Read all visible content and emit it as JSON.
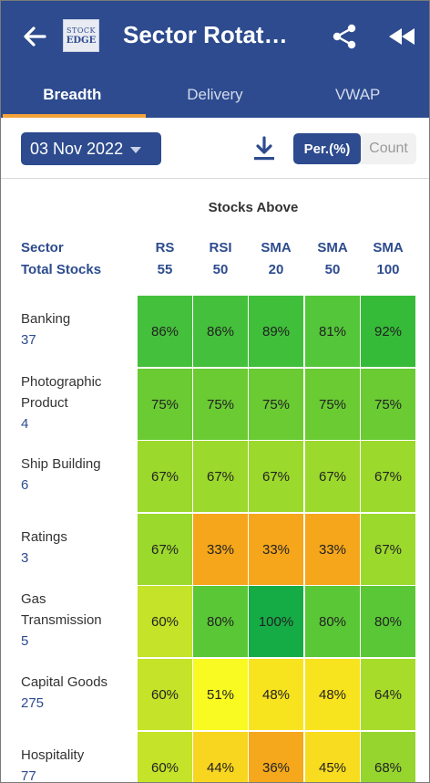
{
  "header": {
    "title": "Sector Rotat…",
    "logo": {
      "line1": "STOCK",
      "line2": "EDGE"
    },
    "icons": {
      "back": "arrow-left-icon",
      "share": "share-icon",
      "rewind": "rewind-icon"
    }
  },
  "tabs": [
    {
      "label": "Breadth",
      "active": true
    },
    {
      "label": "Delivery",
      "active": false
    },
    {
      "label": "VWAP",
      "active": false
    }
  ],
  "toolbar": {
    "date": "03 Nov 2022",
    "download_icon": "download-icon",
    "toggle": {
      "percent_label": "Per.(%)",
      "count_label": "Count",
      "selected": "percent"
    }
  },
  "table": {
    "group_header": "Stocks Above",
    "sector_header": "Sector",
    "total_header": "Total Stocks",
    "columns": [
      {
        "name": "RS",
        "period": "55"
      },
      {
        "name": "RSI",
        "period": "50"
      },
      {
        "name": "SMA",
        "period": "20"
      },
      {
        "name": "SMA",
        "period": "50"
      },
      {
        "name": "SMA",
        "period": "100"
      }
    ],
    "rows": [
      {
        "sector": [
          "Banking"
        ],
        "total": "37",
        "values": [
          "86%",
          "86%",
          "89%",
          "81%",
          "92%"
        ],
        "colors": [
          "#45c03c",
          "#45c03c",
          "#3fbf3a",
          "#54c63a",
          "#36bb38"
        ]
      },
      {
        "sector": [
          "Photographic",
          "Product"
        ],
        "total": "4",
        "values": [
          "75%",
          "75%",
          "75%",
          "75%",
          "75%"
        ],
        "colors": [
          "#6acb33",
          "#6acb33",
          "#6acb33",
          "#6acb33",
          "#6acb33"
        ]
      },
      {
        "sector": [
          "Ship Building"
        ],
        "total": "6",
        "values": [
          "67%",
          "67%",
          "67%",
          "67%",
          "67%"
        ],
        "colors": [
          "#9bd92c",
          "#9bd92c",
          "#9bd92c",
          "#9bd92c",
          "#9bd92c"
        ]
      },
      {
        "sector": [
          "Ratings"
        ],
        "total": "3",
        "values": [
          "67%",
          "33%",
          "33%",
          "33%",
          "67%"
        ],
        "colors": [
          "#9bd92c",
          "#f6a61b",
          "#f6a61b",
          "#f6a61b",
          "#9bd92c"
        ]
      },
      {
        "sector": [
          "Gas",
          "Transmission"
        ],
        "total": "5",
        "values": [
          "60%",
          "80%",
          "100%",
          "80%",
          "80%"
        ],
        "colors": [
          "#c5e328",
          "#5ac836",
          "#15ac46",
          "#5ac836",
          "#5ac836"
        ]
      },
      {
        "sector": [
          "Capital Goods"
        ],
        "total": "275",
        "values": [
          "60%",
          "51%",
          "48%",
          "48%",
          "64%"
        ],
        "colors": [
          "#c5e328",
          "#f8fa22",
          "#f8e31f",
          "#f8e31f",
          "#a8dc2b"
        ]
      },
      {
        "sector": [
          "Hospitality"
        ],
        "total": "77",
        "values": [
          "60%",
          "44%",
          "36%",
          "45%",
          "68%"
        ],
        "colors": [
          "#c5e328",
          "#f8d51e",
          "#f5a81b",
          "#f8dc1f",
          "#96d52d"
        ]
      }
    ]
  }
}
